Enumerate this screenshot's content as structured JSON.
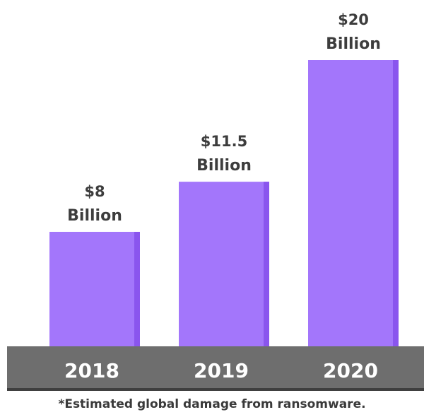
{
  "chart_data": {
    "type": "bar",
    "categories": [
      "2018",
      "2019",
      "2020"
    ],
    "values": [
      8,
      11.5,
      20
    ],
    "value_labels": [
      [
        "$8",
        "Billion"
      ],
      [
        "$11.5",
        "Billion"
      ],
      [
        "$20",
        "Billion"
      ]
    ],
    "title": "",
    "xlabel": "",
    "ylabel": "",
    "ylim": [
      0,
      20
    ],
    "grid": false,
    "footnote": "*Estimated global damage from ransomware.",
    "colors": {
      "bar": "#a376fb",
      "bar_edge": "#8a55ee",
      "axis_band": "#6e6e6e",
      "axis_band_edge": "#3f3f3f",
      "value_text": "#3d3d3d",
      "category_text": "#ffffff"
    }
  }
}
